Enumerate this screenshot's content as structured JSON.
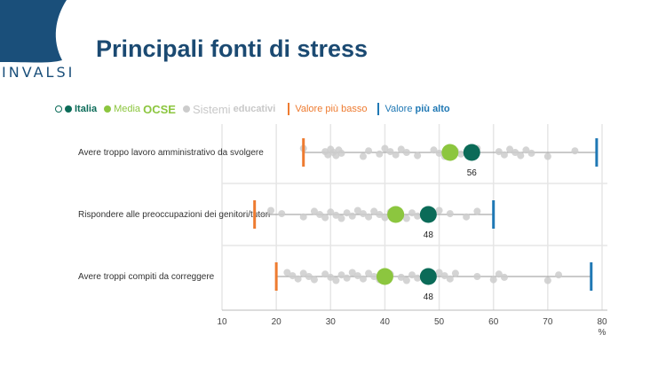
{
  "header": {
    "logo_text": "INVALSI",
    "title": "Principali fonti di stress"
  },
  "legend": {
    "italia": "Italia",
    "media_prefix": "Media",
    "media_strong": "OCSE",
    "sistemi_prefix": "Sistemi",
    "sistemi_strong": "educativi",
    "low_prefix": "Valore",
    "low_strong": "più basso",
    "high_prefix": "Valore",
    "high_strong": "più alto"
  },
  "colors": {
    "italia": "#0b6b58",
    "ocse": "#8cc63f",
    "systems": "#cccccc",
    "low": "#ee7b30",
    "high": "#1f78b4",
    "logo": "#1a4f7a"
  },
  "chart_data": {
    "type": "scatter",
    "xlim": [
      10,
      80
    ],
    "xticks": [
      10,
      20,
      30,
      40,
      50,
      60,
      70,
      80
    ],
    "xunit": "%",
    "categories": [
      {
        "label": "Avere troppo lavoro amministrativo da svolgere",
        "italia": 56,
        "italia_label": "56",
        "ocse": 52,
        "min": 25,
        "max": 79,
        "systems": [
          25,
          29,
          29.5,
          30,
          30.5,
          31,
          31.5,
          32,
          36,
          37,
          39,
          40,
          41,
          42,
          43,
          44,
          46,
          49,
          50,
          51,
          53,
          54,
          57,
          61,
          62,
          63,
          64,
          65,
          66,
          67,
          70,
          75
        ]
      },
      {
        "label": "Rispondere alle preoccupazioni dei genitori/tutori",
        "italia": 48,
        "italia_label": "48",
        "ocse": 42,
        "min": 16,
        "max": 60,
        "systems": [
          19,
          21,
          25,
          27,
          28,
          29,
          30,
          31,
          32,
          33,
          34,
          35,
          36,
          37,
          38,
          39,
          40,
          41,
          43,
          44,
          45,
          46,
          50,
          52,
          55,
          57
        ]
      },
      {
        "label": "Avere troppi compiti da correggere",
        "italia": 48,
        "italia_label": "48",
        "ocse": 40,
        "min": 20,
        "max": 78,
        "systems": [
          22,
          23,
          24,
          25,
          26,
          27,
          29,
          30,
          31,
          32,
          33,
          34,
          35,
          36,
          37,
          38,
          39,
          41,
          43,
          44,
          45,
          46,
          50,
          51,
          52,
          53,
          57,
          60,
          61,
          62,
          70,
          72
        ]
      }
    ]
  }
}
